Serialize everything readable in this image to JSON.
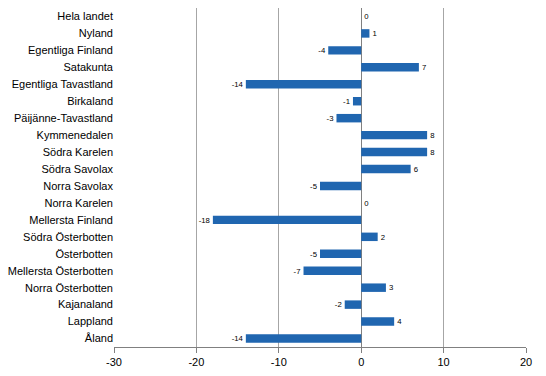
{
  "chart_data": {
    "type": "bar",
    "orientation": "horizontal",
    "categories": [
      "Hela landet",
      "Nyland",
      "Egentliga Finland",
      "Satakunta",
      "Egentliga Tavastland",
      "Birkaland",
      "Päijänne-Tavastland",
      "Kymmenedalen",
      "Södra Karelen",
      "Södra Savolax",
      "Norra Savolax",
      "Norra Karelen",
      "Mellersta Finland",
      "Södra Österbotten",
      "Österbotten",
      "Mellersta Österbotten",
      "Norra Österbotten",
      "Kajanaland",
      "Lappland",
      "Åland"
    ],
    "values": [
      0,
      1,
      -4,
      7,
      -14,
      -1,
      -3,
      8,
      8,
      6,
      -5,
      0,
      -18,
      2,
      -5,
      -7,
      3,
      -2,
      4,
      -14
    ],
    "color": "#2066b0",
    "xlim": [
      -30,
      20
    ],
    "xticks": [
      -30,
      -20,
      -10,
      0,
      10,
      20
    ],
    "grid": true,
    "data_labels": true
  }
}
